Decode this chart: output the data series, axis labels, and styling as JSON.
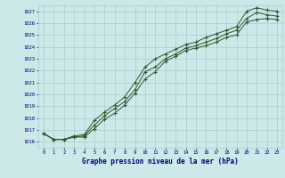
{
  "x": [
    0,
    1,
    2,
    3,
    4,
    5,
    6,
    7,
    8,
    9,
    10,
    11,
    12,
    13,
    14,
    15,
    16,
    17,
    18,
    19,
    20,
    21,
    22,
    23
  ],
  "line1": [
    1016.7,
    1016.2,
    1016.2,
    1016.4,
    1016.4,
    1017.1,
    1017.9,
    1018.4,
    1019.1,
    1020.1,
    1021.3,
    1021.9,
    1022.8,
    1023.2,
    1023.7,
    1023.9,
    1024.1,
    1024.4,
    1024.8,
    1025.0,
    1026.1,
    1026.3,
    1026.4,
    1026.3
  ],
  "line2": [
    1016.7,
    1016.2,
    1016.2,
    1016.4,
    1016.5,
    1017.4,
    1018.2,
    1018.8,
    1019.4,
    1020.4,
    1021.9,
    1022.3,
    1023.0,
    1023.4,
    1023.9,
    1024.1,
    1024.4,
    1024.7,
    1025.1,
    1025.4,
    1026.4,
    1026.9,
    1026.7,
    1026.6
  ],
  "line3": [
    1016.7,
    1016.2,
    1016.2,
    1016.5,
    1016.6,
    1017.8,
    1018.5,
    1019.1,
    1019.8,
    1021.0,
    1022.3,
    1023.0,
    1023.4,
    1023.8,
    1024.2,
    1024.4,
    1024.8,
    1025.1,
    1025.4,
    1025.7,
    1027.0,
    1027.3,
    1027.1,
    1027.0
  ],
  "bg_color": "#cce8e8",
  "grid_color": "#aacccc",
  "line_color": "#2d5a2d",
  "marker": "+",
  "ylabel_ticks": [
    1016,
    1017,
    1018,
    1019,
    1020,
    1021,
    1022,
    1023,
    1024,
    1025,
    1026,
    1027
  ],
  "xlabel_ticks": [
    0,
    1,
    2,
    3,
    4,
    5,
    6,
    7,
    8,
    9,
    10,
    11,
    12,
    13,
    14,
    15,
    16,
    17,
    18,
    19,
    20,
    21,
    22,
    23
  ],
  "xlabel": "Graphe pression niveau de la mer (hPa)",
  "ylim": [
    1015.5,
    1027.5
  ],
  "xlim": [
    -0.5,
    23.5
  ]
}
